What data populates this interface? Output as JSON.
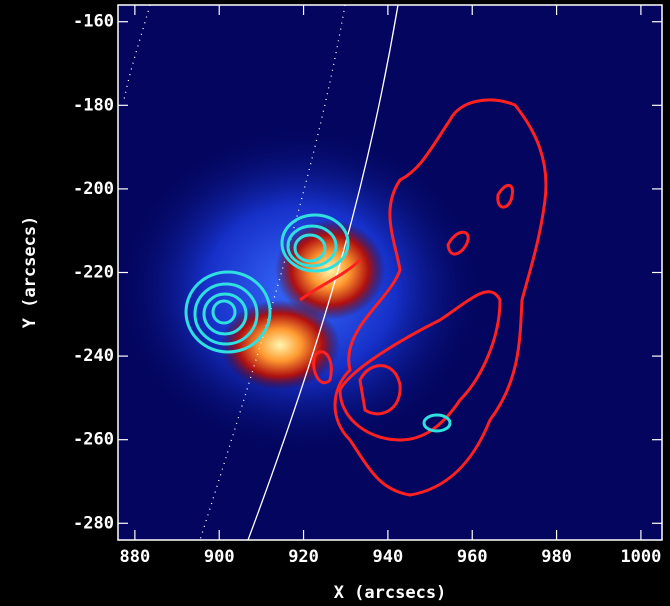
{
  "chart_data": {
    "type": "image",
    "xlabel": "X (arcsecs)",
    "ylabel": "Y (arcsecs)",
    "xlim": [
      876,
      1005
    ],
    "ylim": [
      -284,
      -156
    ],
    "xticks": [
      880,
      900,
      920,
      940,
      960,
      980,
      1000
    ],
    "yticks": [
      -280,
      -260,
      -240,
      -220,
      -200,
      -180,
      -160
    ]
  }
}
